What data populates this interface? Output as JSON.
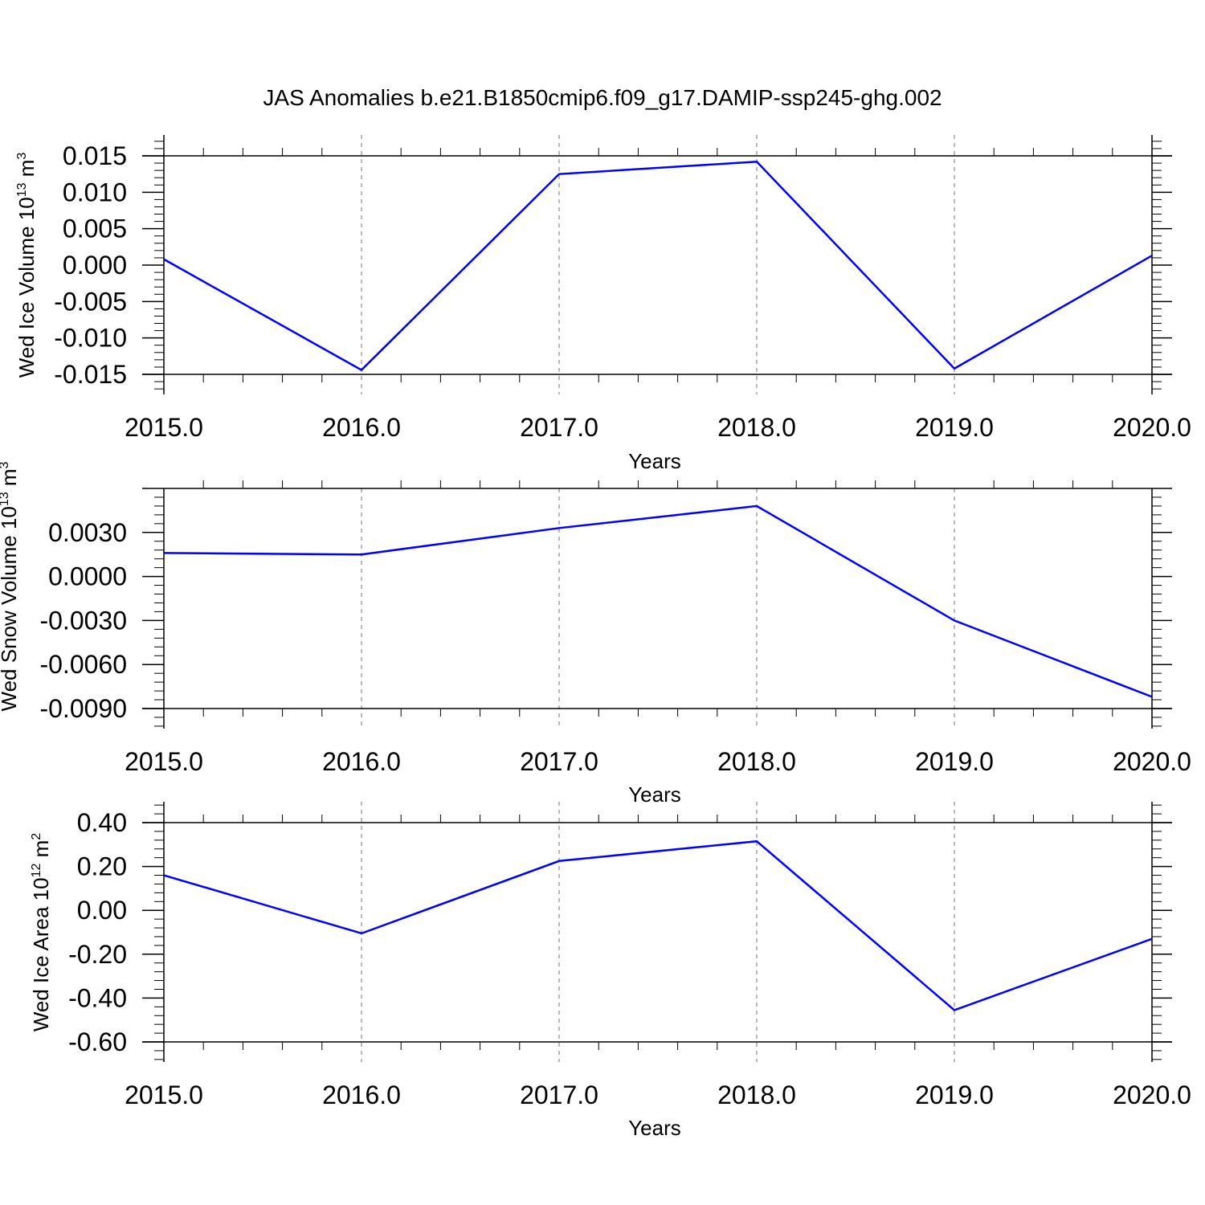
{
  "title": "JAS Anomalies b.e21.B1850cmip6.f09_g17.DAMIP-ssp245-ghg.002",
  "line_color": "#0000ff",
  "chart_data": [
    {
      "type": "line",
      "xlabel": "Years",
      "ylabel": "Wed Ice Volume 10",
      "ylabel_exp": "13",
      "ylabel_unit": "m",
      "ylabel_unit_exp": "3",
      "xlim": [
        2015.0,
        2020.0
      ],
      "ylim": [
        -0.015,
        0.015
      ],
      "xticks": [
        "2015.0",
        "2016.0",
        "2017.0",
        "2018.0",
        "2019.0",
        "2020.0"
      ],
      "yticks": [
        "0.015",
        "0.010",
        "0.005",
        "0.000",
        "-0.005",
        "-0.010",
        "-0.015"
      ],
      "ytick_values": [
        0.015,
        0.01,
        0.005,
        0.0,
        -0.005,
        -0.01,
        -0.015
      ],
      "x": [
        2015,
        2016,
        2017,
        2018,
        2019,
        2020
      ],
      "values": [
        0.0008,
        -0.0144,
        0.0125,
        0.0142,
        -0.0142,
        0.0013
      ]
    },
    {
      "type": "line",
      "xlabel": "Years",
      "ylabel": "Wed Snow Volume 10",
      "ylabel_exp": "13",
      "ylabel_unit": "m",
      "ylabel_unit_exp": "3",
      "xlim": [
        2015.0,
        2020.0
      ],
      "ylim": [
        -0.009,
        0.006
      ],
      "xticks": [
        "2015.0",
        "2016.0",
        "2017.0",
        "2018.0",
        "2019.0",
        "2020.0"
      ],
      "yticks": [
        "0.0030",
        "0.0000",
        "-0.0030",
        "-0.0060",
        "-0.0090"
      ],
      "ytick_values": [
        0.003,
        0.0,
        -0.003,
        -0.006,
        -0.009
      ],
      "x": [
        2015,
        2016,
        2017,
        2018,
        2019,
        2020
      ],
      "values": [
        0.0016,
        0.0015,
        0.0033,
        0.0048,
        -0.003,
        -0.0082
      ]
    },
    {
      "type": "line",
      "xlabel": "Years",
      "ylabel": "Wed Ice Area 10",
      "ylabel_exp": "12",
      "ylabel_unit": "m",
      "ylabel_unit_exp": "2",
      "xlim": [
        2015.0,
        2020.0
      ],
      "ylim": [
        -0.6,
        0.4
      ],
      "xticks": [
        "2015.0",
        "2016.0",
        "2017.0",
        "2018.0",
        "2019.0",
        "2020.0"
      ],
      "yticks": [
        "0.40",
        "0.20",
        "0.00",
        "-0.20",
        "-0.40",
        "-0.60"
      ],
      "ytick_values": [
        0.4,
        0.2,
        0.0,
        -0.2,
        -0.4,
        -0.6
      ],
      "x": [
        2015,
        2016,
        2017,
        2018,
        2019,
        2020
      ],
      "values": [
        0.16,
        -0.105,
        0.225,
        0.315,
        -0.455,
        -0.13
      ]
    }
  ]
}
